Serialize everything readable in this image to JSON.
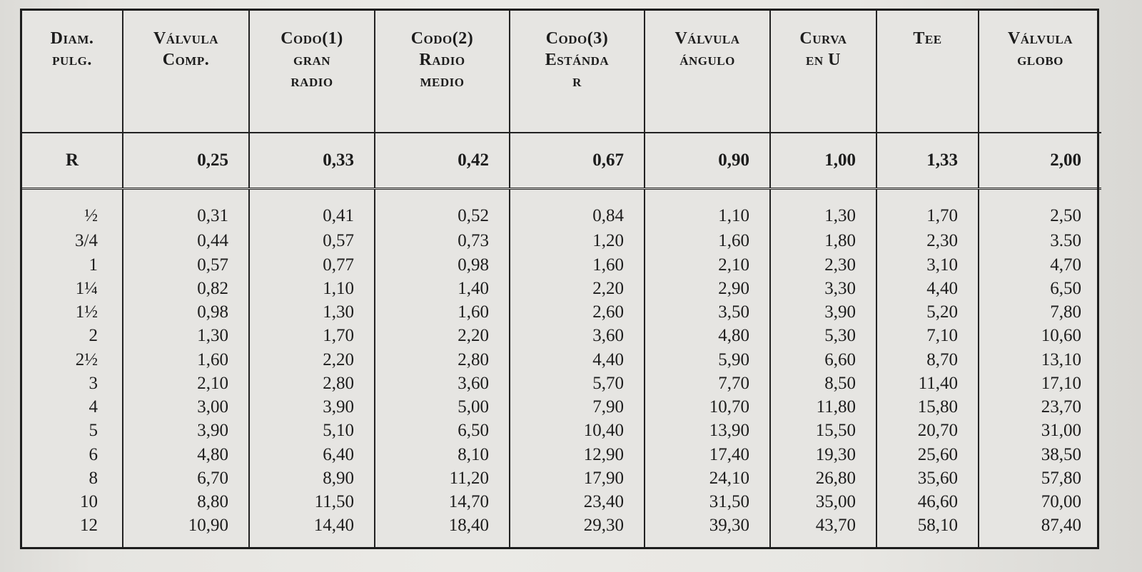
{
  "table": {
    "headers": [
      [
        "Diam.",
        "pulg."
      ],
      [
        "Válvula",
        "Comp."
      ],
      [
        "Codo(1)",
        "gran",
        "radio"
      ],
      [
        "Codo(2)",
        "Radio",
        "medio"
      ],
      [
        "Codo(3)",
        "Estánda",
        "r"
      ],
      [
        "Válvula",
        "ángulo"
      ],
      [
        "Curva",
        "en U"
      ],
      [
        "Tee"
      ],
      [
        "Válvula",
        "globo"
      ]
    ],
    "r_row": [
      "R",
      "0,25",
      "0,33",
      "0,42",
      "0,67",
      "0,90",
      "1,00",
      "1,33",
      "2,00"
    ],
    "rows": [
      [
        "½",
        "0,31",
        "0,41",
        "0,52",
        "0,84",
        "1,10",
        "1,30",
        "1,70",
        "2,50"
      ],
      [
        "3/4",
        "0,44",
        "0,57",
        "0,73",
        "1,20",
        "1,60",
        "1,80",
        "2,30",
        "3.50"
      ],
      [
        "1",
        "0,57",
        "0,77",
        "0,98",
        "1,60",
        "2,10",
        "2,30",
        "3,10",
        "4,70"
      ],
      [
        "1¼",
        "0,82",
        "1,10",
        "1,40",
        "2,20",
        "2,90",
        "3,30",
        "4,40",
        "6,50"
      ],
      [
        "1½",
        "0,98",
        "1,30",
        "1,60",
        "2,60",
        "3,50",
        "3,90",
        "5,20",
        "7,80"
      ],
      [
        "2",
        "1,30",
        "1,70",
        "2,20",
        "3,60",
        "4,80",
        "5,30",
        "7,10",
        "10,60"
      ],
      [
        "2½",
        "1,60",
        "2,20",
        "2,80",
        "4,40",
        "5,90",
        "6,60",
        "8,70",
        "13,10"
      ],
      [
        "3",
        "2,10",
        "2,80",
        "3,60",
        "5,70",
        "7,70",
        "8,50",
        "11,40",
        "17,10"
      ],
      [
        "4",
        "3,00",
        "3,90",
        "5,00",
        "7,90",
        "10,70",
        "11,80",
        "15,80",
        "23,70"
      ],
      [
        "5",
        "3,90",
        "5,10",
        "6,50",
        "10,40",
        "13,90",
        "15,50",
        "20,70",
        "31,00"
      ],
      [
        "6",
        "4,80",
        "6,40",
        "8,10",
        "12,90",
        "17,40",
        "19,30",
        "25,60",
        "38,50"
      ],
      [
        "8",
        "6,70",
        "8,90",
        "11,20",
        "17,90",
        "24,10",
        "26,80",
        "35,60",
        "57,80"
      ],
      [
        "10",
        "8,80",
        "11,50",
        "14,70",
        "23,40",
        "31,50",
        "35,00",
        "46,60",
        "70,00"
      ],
      [
        "12",
        "10,90",
        "14,40",
        "18,40",
        "29,30",
        "39,30",
        "43,70",
        "58,10",
        "87,40"
      ]
    ]
  }
}
